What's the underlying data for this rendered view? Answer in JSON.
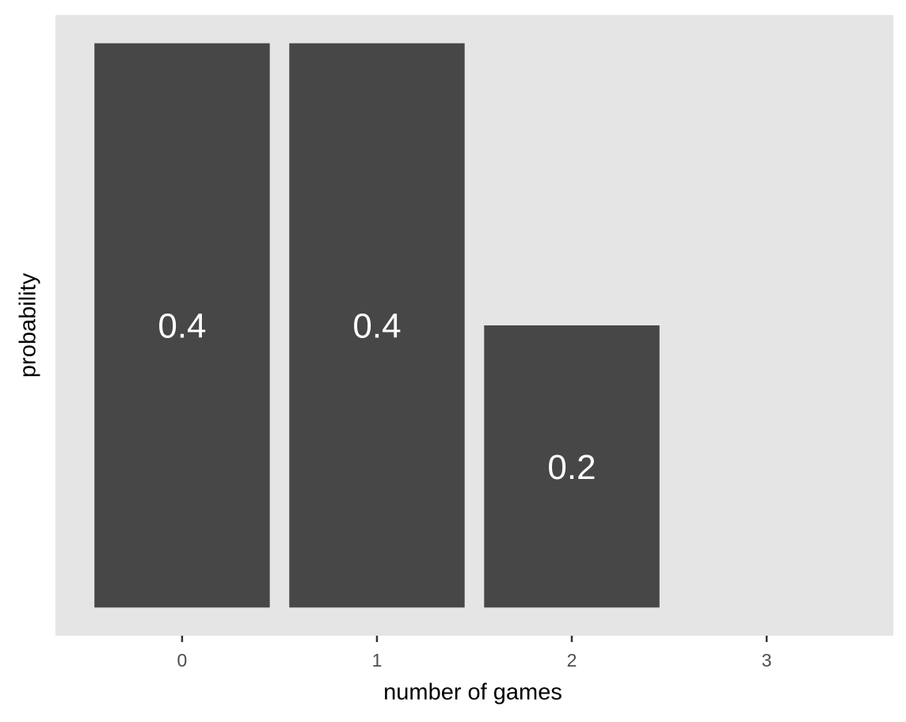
{
  "chart_data": {
    "type": "bar",
    "x": [
      0,
      1,
      2
    ],
    "values": [
      0.4,
      0.4,
      0.2
    ],
    "color": "#474747",
    "xlim": [
      -0.65,
      3.65
    ],
    "xticks": [
      0,
      1,
      2,
      3
    ],
    "ylim": [
      -0.02,
      0.42
    ],
    "x_label": "number of games",
    "y_label": "probability"
  }
}
